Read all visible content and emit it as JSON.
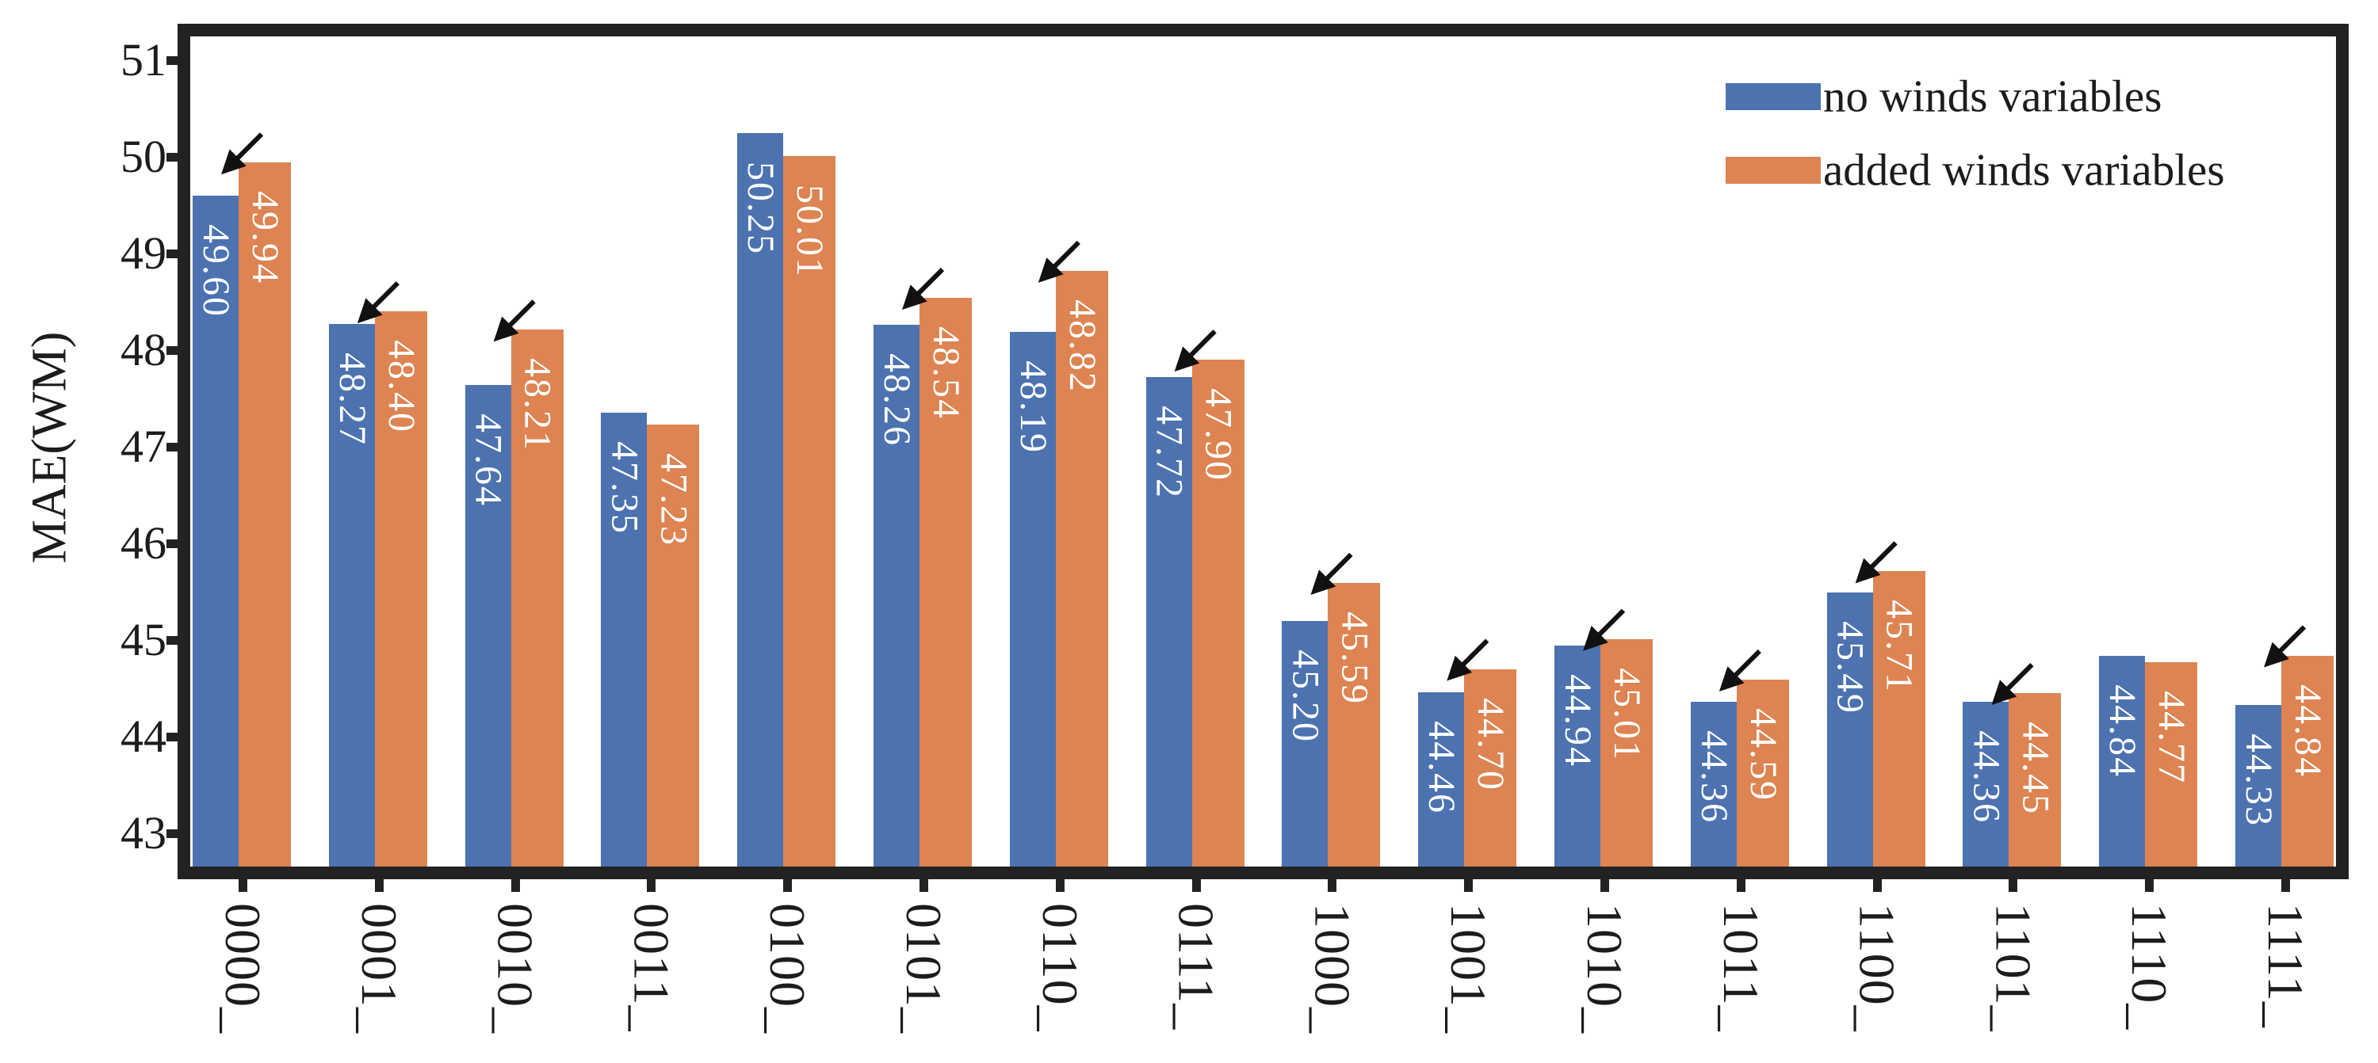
{
  "figure": {
    "ylabel": "MAE(WM)",
    "background_color": "#ffffff",
    "frame_color": "#222222",
    "text_color": "#1c1c1c",
    "value_label_color": "#ffffff"
  },
  "legend": {
    "items": [
      {
        "label": "no winds variables",
        "color": "#4C72B0"
      },
      {
        "label": "added winds variables",
        "color": "#DD8452"
      }
    ],
    "position": "upper right"
  },
  "chart_data": {
    "type": "bar",
    "title": "",
    "xlabel": "",
    "ylabel": "MAE(WM)",
    "categories": [
      "0000_",
      "0001_",
      "0010_",
      "0011_",
      "0100_",
      "0101_",
      "0110_",
      "0111_",
      "1000_",
      "1001_",
      "1010_",
      "1011_",
      "1100_",
      "1101_",
      "1110_",
      "1111_"
    ],
    "series": [
      {
        "name": "no winds variables",
        "color": "#4C72B0",
        "values": [
          49.6,
          48.27,
          47.64,
          47.35,
          50.25,
          48.26,
          48.19,
          47.72,
          45.2,
          44.46,
          44.94,
          44.36,
          45.49,
          44.36,
          44.84,
          44.33
        ]
      },
      {
        "name": "added winds variables",
        "color": "#DD8452",
        "values": [
          49.94,
          48.4,
          48.21,
          47.23,
          50.01,
          48.54,
          48.82,
          47.9,
          45.59,
          44.7,
          45.01,
          44.59,
          45.71,
          44.45,
          44.77,
          44.84
        ]
      }
    ],
    "bar_value_labels_decimals": 2,
    "yticks": [
      43,
      44,
      45,
      46,
      47,
      48,
      49,
      50,
      51
    ],
    "ylim": [
      42.66,
      51.35
    ],
    "grid": false,
    "legend_position": "upper right",
    "arrow_color": "#111111",
    "arrow_marked_category_indices": [
      0,
      1,
      2,
      5,
      6,
      7,
      8,
      9,
      10,
      11,
      12,
      13,
      15
    ],
    "arrow_meaning": "marks pairs where added winds variables MAE exceeds no winds variables MAE"
  }
}
